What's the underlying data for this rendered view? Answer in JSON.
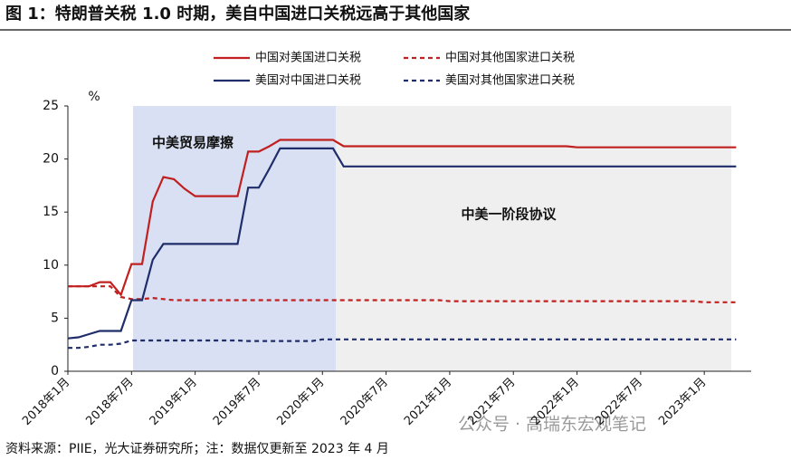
{
  "chart_data": {
    "type": "line",
    "title": "图 1：特朗普关税 1.0 时期，美自中国进口关税远高于其他国家",
    "y_unit": "%",
    "annotations": [
      "中美贸易摩擦",
      "中美一阶段协议"
    ],
    "source": "资料来源：PIIE，光大证券研究所；注：数据仅更新至 2023 年 4 月",
    "watermark": "公众号 · 高瑞东宏观笔记",
    "categories": [
      "2018年1月",
      null,
      null,
      null,
      null,
      null,
      "2018年7月",
      null,
      null,
      null,
      null,
      null,
      "2019年1月",
      null,
      null,
      null,
      null,
      null,
      "2019年7月",
      null,
      null,
      null,
      null,
      null,
      "2020年1月",
      null,
      null,
      null,
      null,
      null,
      "2020年7月",
      null,
      null,
      null,
      null,
      null,
      "2021年1月",
      null,
      null,
      null,
      null,
      null,
      "2021年7月",
      null,
      null,
      null,
      null,
      null,
      "2022年1月",
      null,
      null,
      null,
      null,
      null,
      "2022年7月",
      null,
      null,
      null,
      null,
      null,
      "2023年1月",
      null,
      null,
      null
    ],
    "ylim": [
      0,
      25
    ],
    "yticks": [
      0,
      5,
      10,
      15,
      20,
      25
    ],
    "grid": false,
    "series": [
      {
        "name": "中国对美国进口关税",
        "color": "#c0201f",
        "dash": false,
        "values": [
          8.0,
          8.0,
          8.0,
          8.4,
          8.4,
          7.2,
          10.1,
          10.1,
          16.0,
          18.3,
          18.1,
          17.2,
          16.5,
          16.5,
          16.5,
          16.5,
          16.5,
          20.7,
          20.7,
          21.2,
          21.8,
          21.8,
          21.8,
          21.8,
          21.8,
          21.8,
          21.2,
          21.2,
          21.2,
          21.2,
          21.2,
          21.2,
          21.2,
          21.2,
          21.2,
          21.2,
          21.2,
          21.2,
          21.2,
          21.2,
          21.2,
          21.2,
          21.2,
          21.2,
          21.2,
          21.2,
          21.2,
          21.2,
          21.1,
          21.1,
          21.1,
          21.1,
          21.1,
          21.1,
          21.1,
          21.1,
          21.1,
          21.1,
          21.1,
          21.1,
          21.1,
          21.1,
          21.1,
          21.1
        ]
      },
      {
        "name": "中国对其他国家进口关税",
        "color": "#c0201f",
        "dash": true,
        "values": [
          8.0,
          8.0,
          8.0,
          8.0,
          8.0,
          7.0,
          6.8,
          6.8,
          6.9,
          6.8,
          6.7,
          6.7,
          6.7,
          6.7,
          6.7,
          6.7,
          6.7,
          6.7,
          6.7,
          6.7,
          6.7,
          6.7,
          6.7,
          6.7,
          6.7,
          6.7,
          6.7,
          6.7,
          6.7,
          6.7,
          6.7,
          6.7,
          6.7,
          6.7,
          6.7,
          6.7,
          6.6,
          6.6,
          6.6,
          6.6,
          6.6,
          6.6,
          6.6,
          6.6,
          6.6,
          6.6,
          6.6,
          6.6,
          6.6,
          6.6,
          6.6,
          6.6,
          6.6,
          6.6,
          6.6,
          6.6,
          6.6,
          6.6,
          6.6,
          6.6,
          6.5,
          6.5,
          6.5,
          6.5
        ]
      },
      {
        "name": "美国对中国进口关税",
        "color": "#1f2d6b",
        "dash": false,
        "values": [
          3.1,
          3.2,
          3.5,
          3.8,
          3.8,
          3.8,
          6.7,
          6.7,
          10.5,
          12.0,
          12.0,
          12.0,
          12.0,
          12.0,
          12.0,
          12.0,
          12.0,
          17.3,
          17.3,
          19.1,
          21.0,
          21.0,
          21.0,
          21.0,
          21.0,
          21.0,
          19.3,
          19.3,
          19.3,
          19.3,
          19.3,
          19.3,
          19.3,
          19.3,
          19.3,
          19.3,
          19.3,
          19.3,
          19.3,
          19.3,
          19.3,
          19.3,
          19.3,
          19.3,
          19.3,
          19.3,
          19.3,
          19.3,
          19.3,
          19.3,
          19.3,
          19.3,
          19.3,
          19.3,
          19.3,
          19.3,
          19.3,
          19.3,
          19.3,
          19.3,
          19.3,
          19.3,
          19.3,
          19.3
        ]
      },
      {
        "name": "美国对其他国家进口关税",
        "color": "#1f2d6b",
        "dash": true,
        "values": [
          2.2,
          2.2,
          2.3,
          2.5,
          2.5,
          2.6,
          2.9,
          2.9,
          2.9,
          2.9,
          2.9,
          2.9,
          2.9,
          2.9,
          2.9,
          2.9,
          2.9,
          2.85,
          2.85,
          2.85,
          2.85,
          2.85,
          2.85,
          2.85,
          3.0,
          3.0,
          3.0,
          3.0,
          3.0,
          3.0,
          3.0,
          3.0,
          3.0,
          3.0,
          3.0,
          3.0,
          3.0,
          3.0,
          3.0,
          3.0,
          3.0,
          3.0,
          3.0,
          3.0,
          3.0,
          3.0,
          3.0,
          3.0,
          3.0,
          3.0,
          3.0,
          3.0,
          3.0,
          3.0,
          3.0,
          3.0,
          3.0,
          3.0,
          3.0,
          3.0,
          3.0,
          3.0,
          3.0,
          3.0
        ]
      }
    ]
  }
}
